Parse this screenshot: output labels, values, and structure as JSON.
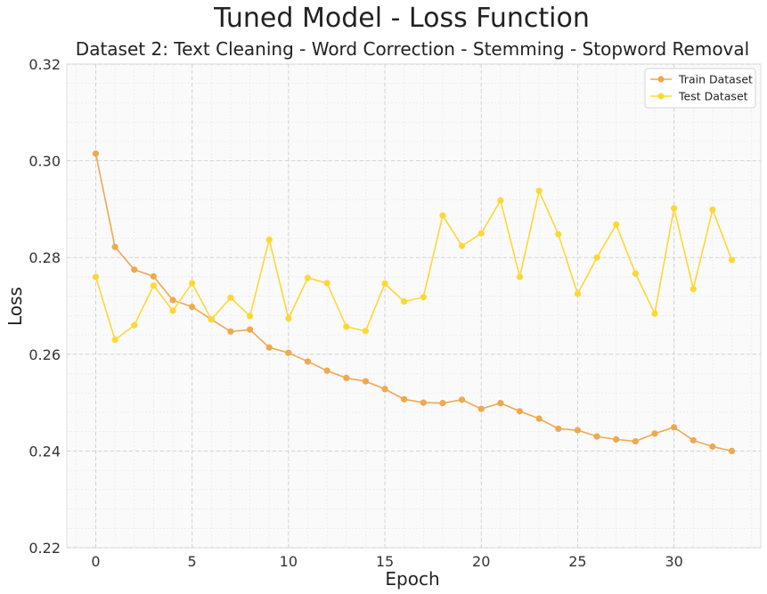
{
  "chart_data": {
    "type": "line",
    "title": "Tuned Model - Loss Function",
    "subtitle": "Dataset 2: Text Cleaning - Word Correction - Stemming - Stopword Removal",
    "xlabel": "Epoch",
    "ylabel": "Loss",
    "xlim": [
      -1.5,
      34.5
    ],
    "ylim": [
      0.22,
      0.32
    ],
    "x_ticks": [
      0,
      5,
      10,
      15,
      20,
      25,
      30
    ],
    "y_ticks": [
      0.22,
      0.24,
      0.26,
      0.28,
      0.3,
      0.32
    ],
    "y_tick_labels": [
      "0.22",
      "0.24",
      "0.26",
      "0.28",
      "0.30",
      "0.32"
    ],
    "grid": true,
    "legend_position": "top-right",
    "x": [
      0,
      1,
      2,
      3,
      4,
      5,
      6,
      7,
      8,
      9,
      10,
      11,
      12,
      13,
      14,
      15,
      16,
      17,
      18,
      19,
      20,
      21,
      22,
      23,
      24,
      25,
      26,
      27,
      28,
      29,
      30,
      31,
      32,
      33
    ],
    "series": [
      {
        "name": "Train Dataset",
        "color": "#f0a850",
        "values": [
          0.3015,
          0.2822,
          0.2775,
          0.2761,
          0.2712,
          0.2698,
          0.2672,
          0.2647,
          0.2651,
          0.2614,
          0.2603,
          0.2585,
          0.2566,
          0.2551,
          0.2544,
          0.2528,
          0.2507,
          0.25,
          0.2499,
          0.2506,
          0.2487,
          0.2499,
          0.2482,
          0.2467,
          0.2446,
          0.2443,
          0.243,
          0.2424,
          0.242,
          0.2436,
          0.2449,
          0.2422,
          0.2409,
          0.24
        ]
      },
      {
        "name": "Test Dataset",
        "color": "#fdd835",
        "values": [
          0.276,
          0.263,
          0.266,
          0.2742,
          0.269,
          0.2747,
          0.2672,
          0.2717,
          0.2679,
          0.2837,
          0.2674,
          0.2758,
          0.2747,
          0.2657,
          0.2648,
          0.2746,
          0.2709,
          0.2718,
          0.2887,
          0.2824,
          0.285,
          0.2918,
          0.276,
          0.2938,
          0.2848,
          0.2725,
          0.28,
          0.2868,
          0.2767,
          0.2684,
          0.2902,
          0.2735,
          0.2899,
          0.2795
        ]
      }
    ]
  }
}
